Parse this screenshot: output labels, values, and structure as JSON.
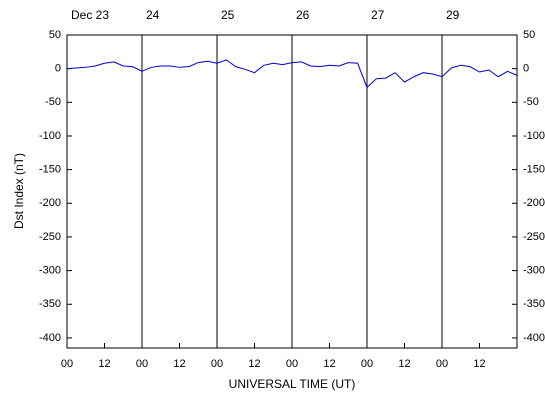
{
  "chart_data": {
    "type": "line",
    "y_label": "Dst Index (nT)",
    "x_label": "UNIVERSAL TIME (UT)",
    "x": [
      0,
      3,
      6,
      9,
      12,
      15,
      18,
      21,
      24,
      27,
      30,
      33,
      36,
      39,
      42,
      45,
      48,
      51,
      54,
      57,
      60,
      63,
      66,
      69,
      72,
      75,
      78,
      81,
      84,
      87,
      90,
      93,
      96,
      99,
      102,
      105,
      108,
      111,
      114,
      117,
      120,
      123,
      126,
      129,
      132,
      135,
      138,
      141,
      144
    ],
    "series": [
      {
        "color": "#0000cc",
        "values": [
          0,
          1,
          2,
          4,
          8,
          10,
          4,
          3,
          -4,
          2,
          4,
          4,
          2,
          3,
          9,
          11,
          8,
          13,
          3,
          -1,
          -6,
          5,
          8,
          6,
          9,
          10,
          4,
          3,
          5,
          4,
          9,
          8,
          -28,
          -15,
          -14,
          -6,
          -20,
          -12,
          -6,
          -8,
          -12,
          1,
          5,
          3,
          -5,
          -2,
          -12,
          -4,
          -10
        ]
      }
    ],
    "xlim": [
      0,
      144
    ],
    "ylim": [
      -415,
      50
    ],
    "xticks": [
      {
        "value": 0,
        "label": "00"
      },
      12,
      {
        "value": 24,
        "label": "00"
      },
      {
        "value": 36,
        "label": "12"
      },
      {
        "value": 48,
        "label": "00"
      },
      {
        "value": 60,
        "label": "12"
      },
      {
        "value": 72,
        "label": "00"
      },
      {
        "value": 84,
        "label": "12"
      },
      {
        "value": 96,
        "label": "00"
      },
      {
        "value": 108,
        "label": "12"
      },
      {
        "value": 120,
        "label": "00"
      },
      {
        "value": 132,
        "label": "12"
      }
    ],
    "x2ticks": [
      {
        "value": 0,
        "label": "Dec 23"
      },
      {
        "value": 24,
        "label": "24"
      },
      {
        "value": 48,
        "label": "25"
      },
      {
        "value": 72,
        "label": "26"
      },
      {
        "value": 96,
        "label": "27"
      },
      {
        "value": 120,
        "label": "29"
      }
    ],
    "yticks": [
      50,
      0,
      -50,
      -100,
      -150,
      -200,
      -250,
      -300,
      -350,
      -400
    ]
  }
}
